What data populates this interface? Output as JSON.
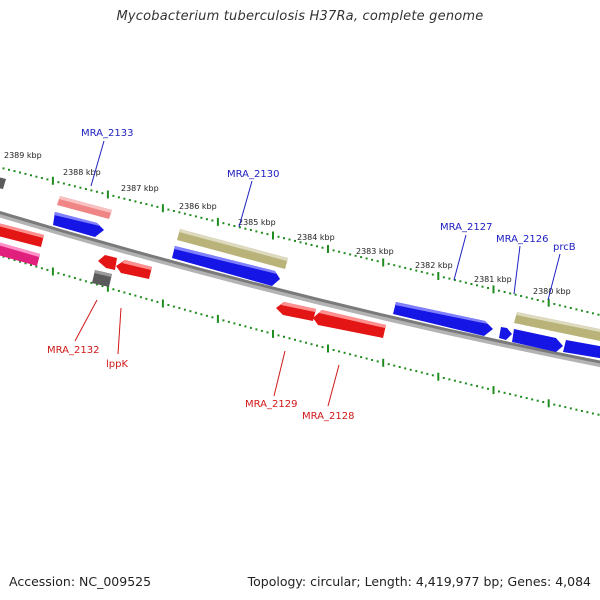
{
  "title": "Mycobacterium tuberculosis H37Ra, complete genome",
  "footer": {
    "accession": "Accession: NC_009525",
    "topology": "Topology: circular; Length: 4,419,977 bp; Genes: 4,084"
  },
  "colors": {
    "backbone": "#7f7f7f",
    "ticks": "#1e8c1e",
    "forward_gene": "#1515e6",
    "reverse_gene": "#e41515",
    "pseudo": "#b9b37a",
    "pink_gene": "#f08080",
    "magenta_gene": "#e0207c",
    "gray_gene": "#5a5a5a",
    "label_forward": "#2020c0",
    "label_reverse": "#d01818"
  },
  "scale_labels": [
    "2389 kbp",
    "2388 kbp",
    "2387 kbp",
    "2386 kbp",
    "2385 kbp",
    "2384 kbp",
    "2383 kbp",
    "2382 kbp",
    "2381 kbp",
    "2380 kbp"
  ],
  "gene_labels_top": [
    "MRA_2133",
    "MRA_2130",
    "MRA_2127",
    "MRA_2126",
    "prcB"
  ],
  "gene_labels_bottom": [
    "MRA_2132",
    "lppK",
    "MRA_2129",
    "MRA_2128"
  ]
}
